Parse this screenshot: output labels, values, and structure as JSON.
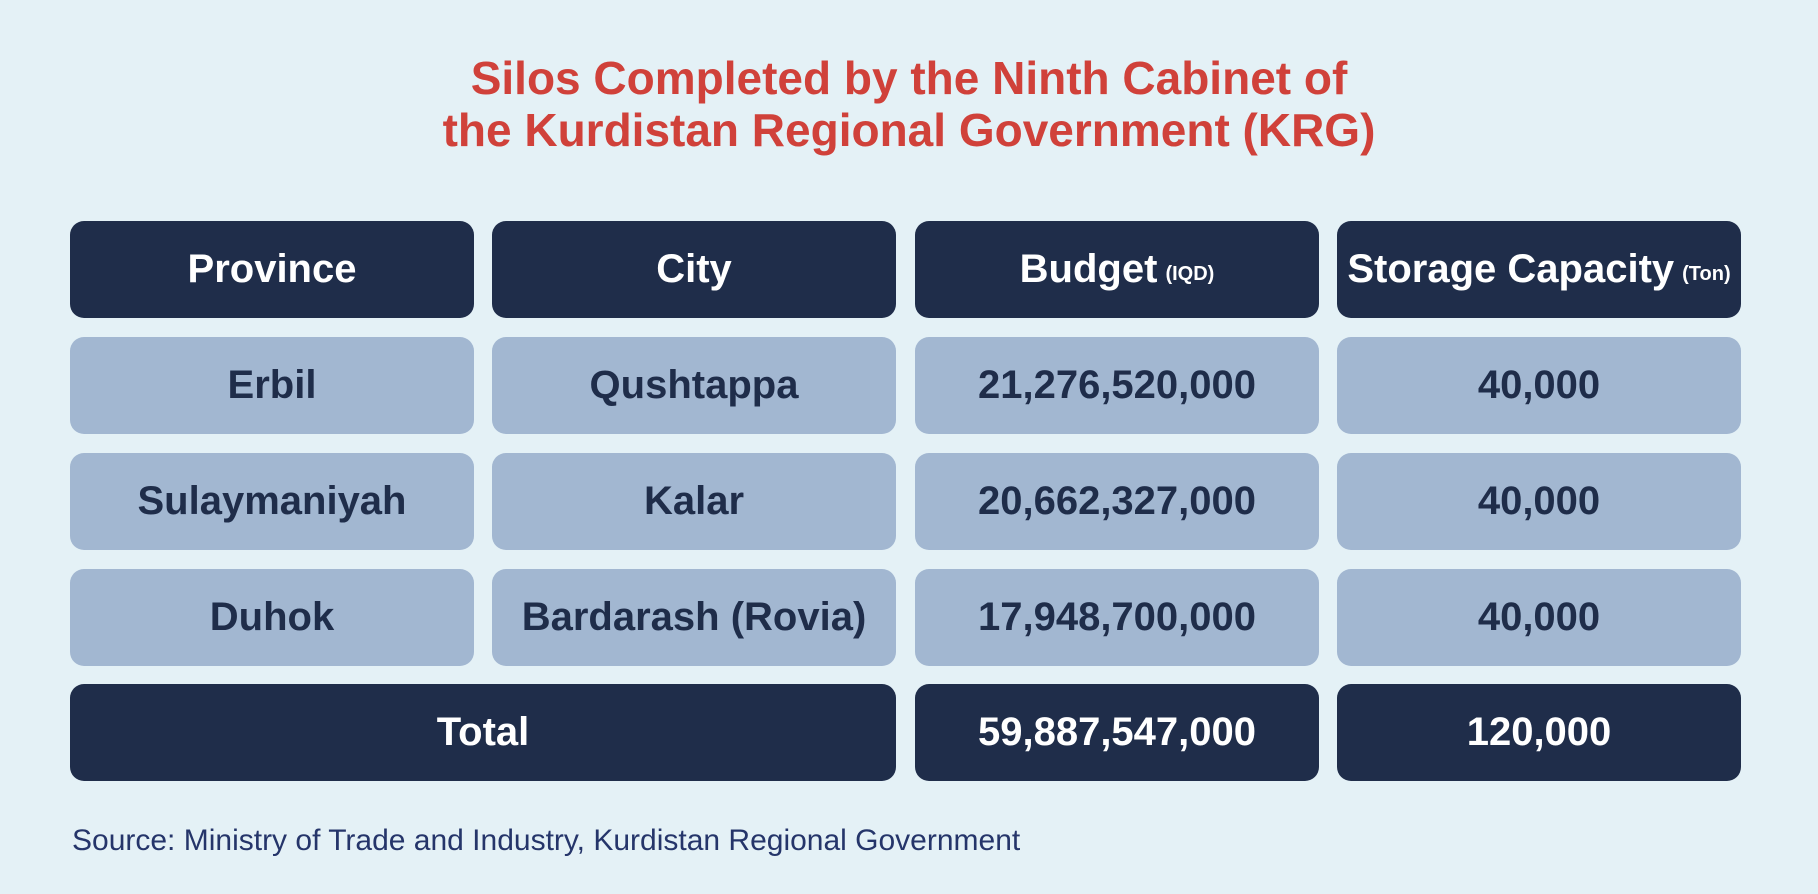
{
  "header": {
    "title": [
      "Silos Completed by the Ninth Cabinet of",
      "the Kurdistan Regional Government (KRG)"
    ]
  },
  "table": {
    "header": [
      {
        "text": "Province"
      },
      {
        "text": "City"
      },
      {
        "text": "Budget",
        "unit": "(IQD)"
      },
      {
        "text": "Storage Capacity",
        "unit": "(Ton)"
      }
    ],
    "rows": [
      [
        "Erbil",
        "Qushtappa",
        "21,276,520,000",
        "40,000"
      ],
      [
        "Sulaymaniyah",
        "Kalar",
        "20,662,327,000",
        "40,000"
      ],
      [
        "Duhok",
        "Bardarash (Rovia)",
        "17,948,700,000",
        "40,000"
      ]
    ],
    "total": {
      "label": "Total",
      "budget": "59,887,547,000",
      "capacity": "120,000"
    }
  },
  "footer": {
    "source": "Source: Ministry of Trade and Industry, Kurdistan Regional Government"
  }
}
